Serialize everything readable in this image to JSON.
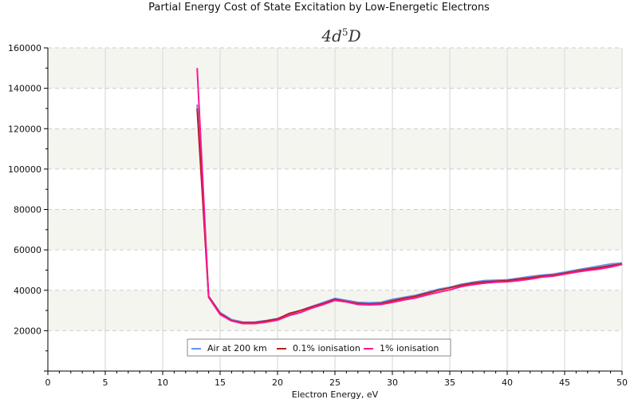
{
  "chart_data": {
    "type": "line",
    "title": "Partial Energy Cost of State Excitation by Low-Energetic Electrons",
    "subtitle": {
      "base": "4d",
      "superscript": "5",
      "tail": "D"
    },
    "xlabel": "Electron Energy, eV",
    "ylabel": "",
    "xlim": [
      0,
      50
    ],
    "ylim": [
      0,
      160000
    ],
    "xticks": [
      0,
      5,
      10,
      15,
      20,
      25,
      30,
      35,
      40,
      45,
      50
    ],
    "yticks": [
      20000,
      40000,
      60000,
      80000,
      100000,
      120000,
      140000,
      160000
    ],
    "grid": true,
    "legend_position": "bottom-center",
    "x": [
      13,
      14,
      15,
      16,
      17,
      18,
      19,
      20,
      21,
      22,
      23,
      24,
      25,
      26,
      27,
      28,
      29,
      30,
      31,
      32,
      33,
      34,
      35,
      36,
      37,
      38,
      39,
      40,
      41,
      42,
      43,
      44,
      45,
      46,
      47,
      48,
      49,
      50
    ],
    "series": [
      {
        "name": "Air at 200 km",
        "color": "#6495ED",
        "values": [
          132000,
          37000,
          29000,
          25500,
          24200,
          24200,
          25000,
          26000,
          28000,
          30000,
          32000,
          34000,
          36000,
          35000,
          34000,
          33800,
          34000,
          35500,
          36500,
          37500,
          39000,
          40500,
          41500,
          43000,
          44000,
          44800,
          45000,
          45200,
          46000,
          46800,
          47500,
          48000,
          49000,
          50000,
          51000,
          52000,
          53000,
          53500
        ]
      },
      {
        "name": "0.1% ionisation",
        "color": "#B22222",
        "values": [
          130000,
          37000,
          28500,
          25000,
          24000,
          24000,
          24800,
          25800,
          28500,
          30000,
          31800,
          33500,
          35500,
          34500,
          33500,
          33200,
          33500,
          34800,
          36000,
          37000,
          38500,
          40000,
          41200,
          42500,
          43500,
          44200,
          44500,
          44800,
          45500,
          46200,
          47000,
          47500,
          48500,
          49500,
          50500,
          51200,
          52200,
          53000
        ]
      },
      {
        "name": "1% ionisation",
        "color": "#FF1493",
        "values": [
          150000,
          36500,
          28000,
          24800,
          23500,
          23500,
          24200,
          25200,
          27500,
          29000,
          31200,
          33000,
          35000,
          34200,
          33000,
          32800,
          33000,
          34000,
          35200,
          36200,
          37700,
          39000,
          40200,
          41800,
          42800,
          43500,
          44000,
          44200,
          44800,
          45500,
          46500,
          47000,
          48000,
          49000,
          49800,
          50500,
          51500,
          52800
        ]
      }
    ]
  },
  "colors": {
    "plot_band": "#F5F5F0",
    "grid": "#CCCCCC",
    "axis": "#000000"
  }
}
